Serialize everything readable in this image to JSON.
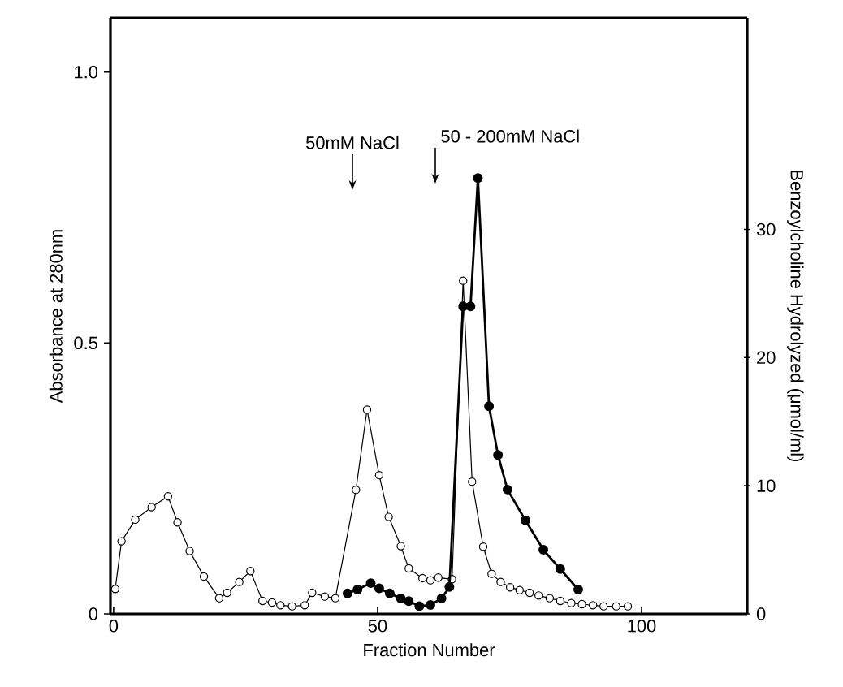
{
  "chart_data": {
    "type": "line",
    "xlabel": "Fraction Number",
    "ylabel": "Absorbance at 280nm",
    "y2label": "Benzoylcholine Hydrolyzed (μmol/ml)",
    "xlim": [
      -0.6,
      120
    ],
    "xticks": [
      0,
      50,
      100
    ],
    "ylim": [
      0,
      1.1
    ],
    "yticks": [
      0,
      0.5,
      {
        "value": 1,
        "label": "1.0"
      }
    ],
    "y2lim": [
      0,
      46.5
    ],
    "y2ticks": [
      0,
      10,
      20,
      30
    ],
    "marker": "circle",
    "grid": false,
    "series": [
      {
        "color": "#000000",
        "x": [
          0.3,
          1.5,
          4.1,
          7.2,
          10.3,
          12.1,
          14.4,
          17.1,
          20,
          21.5,
          23.8,
          25.9,
          28.2,
          30,
          31.6,
          33.8,
          36.2,
          37.6,
          40,
          42,
          45.9,
          48,
          50.3,
          52.1,
          54.4,
          55.9,
          58.5,
          60,
          61.5,
          64.1,
          66.2,
          67.9,
          70,
          71.6,
          73.3,
          75.1,
          76.9,
          78.8,
          80.5,
          82.6,
          84.6,
          86.7,
          88.7,
          90.8,
          92.8,
          95.2,
          97.4
        ],
        "values": [
          0.046,
          0.134,
          0.174,
          0.197,
          0.217,
          0.169,
          0.116,
          0.069,
          0.029,
          0.039,
          0.059,
          0.079,
          0.024,
          0.021,
          0.016,
          0.014,
          0.016,
          0.039,
          0.032,
          0.029,
          0.229,
          0.377,
          0.256,
          0.179,
          0.125,
          0.084,
          0.066,
          0.062,
          0.067,
          0.064,
          0.615,
          0.244,
          0.124,
          0.074,
          0.059,
          0.049,
          0.044,
          0.039,
          0.034,
          0.029,
          0.024,
          0.02,
          0.018,
          0.016,
          0.014,
          0.014,
          0.014
        ]
      },
      {
        "color": "#000000",
        "axis": "y2",
        "x": [
          44.3,
          46.2,
          48.7,
          50.3,
          52.3,
          54.4,
          55.9,
          57.9,
          60,
          62.1,
          63.6,
          66.2,
          67.6,
          69,
          71.1,
          72.8,
          74.6,
          78,
          81.4,
          84.6,
          88
        ],
        "values": [
          1.6,
          1.9,
          2.4,
          2,
          1.6,
          1.2,
          1,
          0.6,
          0.7,
          1.2,
          2.1,
          24,
          24,
          34,
          16.2,
          12.4,
          9.7,
          7.3,
          5,
          3.5,
          1.9
        ]
      }
    ],
    "annotations": [
      "50mM NaCl",
      "50 - 200mM NaCl"
    ]
  }
}
